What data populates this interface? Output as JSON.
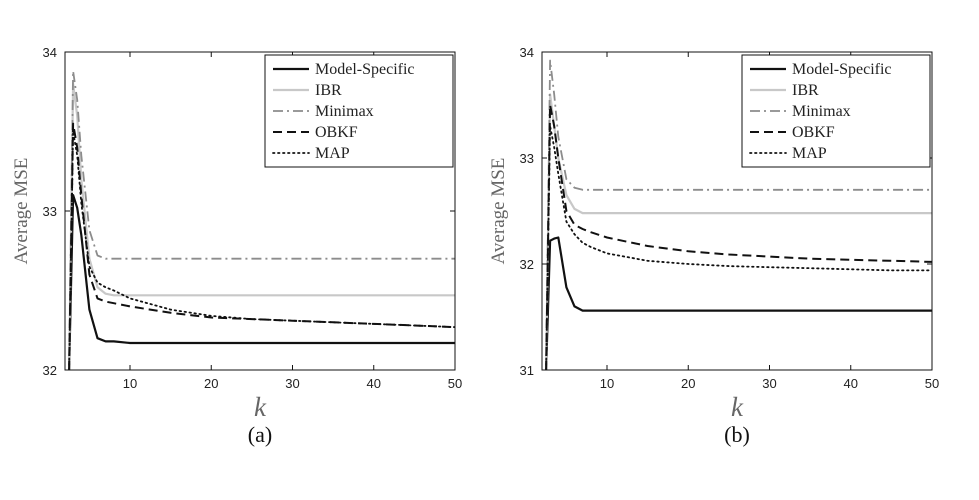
{
  "chart_data": [
    {
      "type": "line",
      "panel_label": "(a)",
      "xlabel": "k",
      "ylabel": "Average MSE",
      "xlim": [
        2,
        50
      ],
      "ylim": [
        32,
        34
      ],
      "xticks": [
        10,
        20,
        30,
        40,
        50
      ],
      "yticks": [
        32,
        33,
        34
      ],
      "grid": false,
      "legend_position": "top-right",
      "series": [
        {
          "name": "Model-Specific",
          "color": "#111111",
          "dash": "solid",
          "width": 2.2,
          "x": [
            2.5,
            3,
            3.5,
            4,
            5,
            6,
            7,
            8,
            10,
            15,
            20,
            30,
            40,
            50
          ],
          "y": [
            32,
            33.1,
            33.02,
            32.85,
            32.38,
            32.2,
            32.18,
            32.18,
            32.17,
            32.17,
            32.17,
            32.17,
            32.17,
            32.17
          ]
        },
        {
          "name": "IBR",
          "color": "#c8c8c8",
          "dash": "solid",
          "width": 2.2,
          "x": [
            2.5,
            3,
            3.5,
            4,
            5,
            6,
            7,
            8,
            10,
            15,
            20,
            30,
            40,
            50
          ],
          "y": [
            32,
            33.8,
            33.6,
            33.2,
            32.7,
            32.52,
            32.48,
            32.47,
            32.47,
            32.47,
            32.47,
            32.47,
            32.47,
            32.47
          ]
        },
        {
          "name": "Minimax",
          "color": "#8c8c8c",
          "dash": "dashdot",
          "width": 1.8,
          "x": [
            2.5,
            3,
            3.5,
            4,
            5,
            6,
            7,
            8,
            10,
            15,
            20,
            30,
            40,
            50
          ],
          "y": [
            32,
            33.88,
            33.7,
            33.35,
            32.88,
            32.72,
            32.7,
            32.7,
            32.7,
            32.7,
            32.7,
            32.7,
            32.7,
            32.7
          ]
        },
        {
          "name": "OBKF",
          "color": "#111111",
          "dash": "dash",
          "width": 2.0,
          "x": [
            2.5,
            3,
            3.5,
            4,
            5,
            6,
            7,
            8,
            10,
            15,
            20,
            25,
            30,
            35,
            40,
            45,
            50
          ],
          "y": [
            32,
            33.55,
            33.4,
            33.1,
            32.6,
            32.45,
            32.43,
            32.42,
            32.4,
            32.36,
            32.33,
            32.32,
            32.31,
            32.3,
            32.29,
            32.28,
            32.27
          ]
        },
        {
          "name": "MAP",
          "color": "#111111",
          "dash": "dot",
          "width": 1.8,
          "x": [
            2.5,
            3,
            3.5,
            4,
            5,
            6,
            7,
            8,
            10,
            15,
            20,
            25,
            30,
            35,
            40,
            45,
            50
          ],
          "y": [
            32,
            33.5,
            33.35,
            33.05,
            32.65,
            32.55,
            32.52,
            32.5,
            32.45,
            32.38,
            32.34,
            32.32,
            32.31,
            32.3,
            32.29,
            32.28,
            32.27
          ]
        }
      ]
    },
    {
      "type": "line",
      "panel_label": "(b)",
      "xlabel": "k",
      "ylabel": "Average MSE",
      "xlim": [
        2,
        50
      ],
      "ylim": [
        31,
        34
      ],
      "xticks": [
        10,
        20,
        30,
        40,
        50
      ],
      "yticks": [
        31,
        32,
        33,
        34
      ],
      "grid": false,
      "legend_position": "top-right",
      "series": [
        {
          "name": "Model-Specific",
          "color": "#111111",
          "dash": "solid",
          "width": 2.2,
          "x": [
            2.5,
            3,
            3.5,
            4,
            5,
            6,
            7,
            8,
            10,
            15,
            20,
            30,
            40,
            50
          ],
          "y": [
            31,
            32.22,
            32.24,
            32.25,
            31.78,
            31.6,
            31.56,
            31.56,
            31.56,
            31.56,
            31.56,
            31.56,
            31.56,
            31.56
          ]
        },
        {
          "name": "IBR",
          "color": "#c8c8c8",
          "dash": "solid",
          "width": 2.2,
          "x": [
            2.5,
            3,
            3.5,
            4,
            5,
            6,
            7,
            8,
            10,
            15,
            20,
            30,
            40,
            50
          ],
          "y": [
            31,
            33.6,
            33.3,
            33.0,
            32.65,
            32.52,
            32.48,
            32.48,
            32.48,
            32.48,
            32.48,
            32.48,
            32.48,
            32.48
          ]
        },
        {
          "name": "Minimax",
          "color": "#8c8c8c",
          "dash": "dashdot",
          "width": 1.8,
          "x": [
            2.5,
            3,
            3.5,
            4,
            5,
            6,
            7,
            8,
            10,
            15,
            20,
            30,
            40,
            50
          ],
          "y": [
            31,
            33.92,
            33.6,
            33.2,
            32.8,
            32.72,
            32.7,
            32.7,
            32.7,
            32.7,
            32.7,
            32.7,
            32.7,
            32.7
          ]
        },
        {
          "name": "OBKF",
          "color": "#111111",
          "dash": "dash",
          "width": 2.0,
          "x": [
            2.5,
            3,
            3.5,
            4,
            5,
            6,
            7,
            8,
            10,
            15,
            20,
            25,
            30,
            35,
            40,
            45,
            50
          ],
          "y": [
            31,
            33.5,
            33.3,
            33.0,
            32.5,
            32.37,
            32.33,
            32.3,
            32.25,
            32.17,
            32.12,
            32.09,
            32.07,
            32.05,
            32.04,
            32.03,
            32.02
          ]
        },
        {
          "name": "MAP",
          "color": "#111111",
          "dash": "dot",
          "width": 1.8,
          "x": [
            2.5,
            3,
            3.5,
            4,
            5,
            6,
            7,
            8,
            10,
            15,
            20,
            25,
            30,
            35,
            40,
            45,
            50
          ],
          "y": [
            31,
            33.3,
            33.1,
            32.85,
            32.4,
            32.28,
            32.2,
            32.16,
            32.1,
            32.03,
            32.0,
            31.98,
            31.97,
            31.96,
            31.95,
            31.94,
            31.94
          ]
        }
      ]
    }
  ]
}
